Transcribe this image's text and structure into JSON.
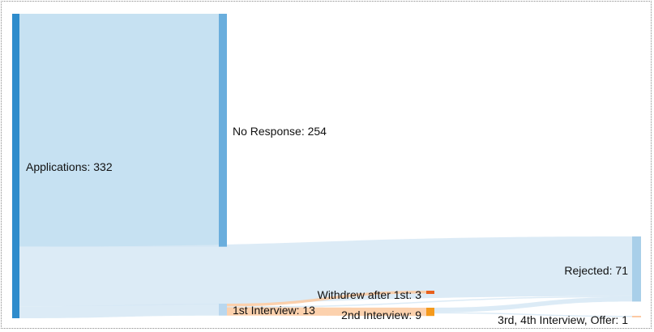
{
  "chart_data": {
    "type": "sankey",
    "nodes": [
      {
        "id": "applications",
        "label": "Applications: 332",
        "name": "Applications",
        "value": 332,
        "color": "#2e8ccc"
      },
      {
        "id": "no_response",
        "label": "No Response: 254",
        "name": "No Response",
        "value": 254,
        "color": "#6aaedd"
      },
      {
        "id": "first_interview",
        "label": "1st Interview: 13",
        "name": "1st Interview",
        "value": 13,
        "color": "#b9d7ee"
      },
      {
        "id": "withdrew",
        "label": "Withdrew after 1st: 3",
        "name": "Withdrew after 1st",
        "value": 3,
        "color": "#e8601c"
      },
      {
        "id": "second_interview",
        "label": "2nd Interview: 9",
        "name": "2nd Interview",
        "value": 9,
        "color": "#f59a1c"
      },
      {
        "id": "rejected",
        "label": "Rejected: 71",
        "name": "Rejected",
        "value": 71,
        "color": "#a9cfe9"
      },
      {
        "id": "offer",
        "label": "3rd, 4th Interview, Offer: 1",
        "name": "3rd, 4th Interview, Offer",
        "value": 1,
        "color": "#fcc9a3"
      }
    ],
    "links": [
      {
        "source": "applications",
        "target": "no_response",
        "value": 254
      },
      {
        "source": "applications",
        "target": "rejected",
        "value": 65
      },
      {
        "source": "applications",
        "target": "first_interview",
        "value": 13
      },
      {
        "source": "first_interview",
        "target": "withdrew",
        "value": 3
      },
      {
        "source": "first_interview",
        "target": "second_interview",
        "value": 9
      },
      {
        "source": "first_interview",
        "target": "rejected",
        "value": 1
      },
      {
        "source": "second_interview",
        "target": "rejected",
        "value": 5
      },
      {
        "source": "second_interview",
        "target": "offer",
        "value": 1
      }
    ],
    "link_colors": {
      "blue": "#bcdcf0",
      "light_blue": "#d6e8f5",
      "orange": "#fbc99f"
    }
  }
}
